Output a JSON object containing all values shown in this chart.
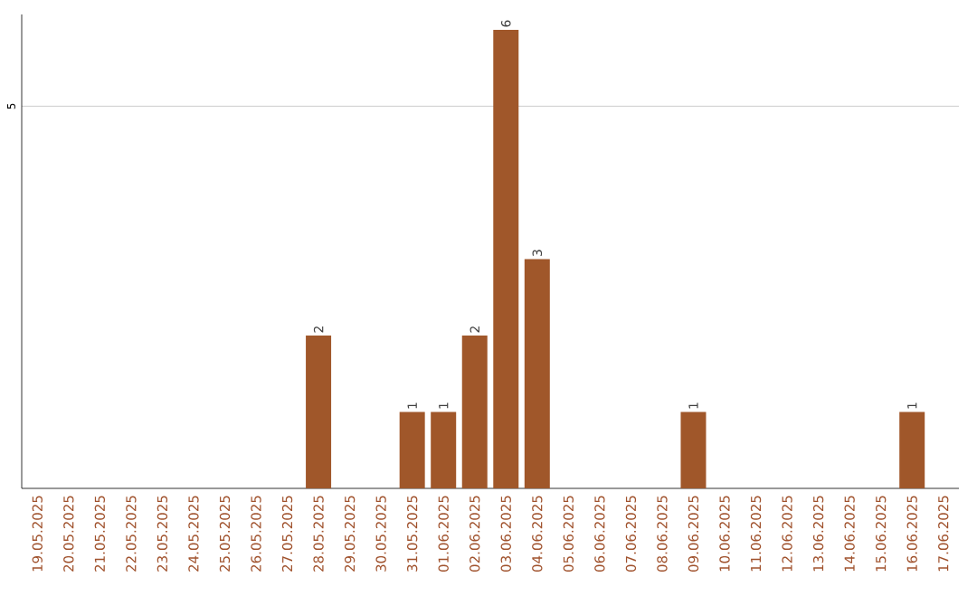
{
  "chart_data": {
    "type": "bar",
    "categories": [
      "19.05.2025",
      "20.05.2025",
      "21.05.2025",
      "22.05.2025",
      "23.05.2025",
      "24.05.2025",
      "25.05.2025",
      "26.05.2025",
      "27.05.2025",
      "28.05.2025",
      "29.05.2025",
      "30.05.2025",
      "31.05.2025",
      "01.06.2025",
      "02.06.2025",
      "03.06.2025",
      "04.06.2025",
      "05.06.2025",
      "06.06.2025",
      "07.06.2025",
      "08.06.2025",
      "09.06.2025",
      "10.06.2025",
      "11.06.2025",
      "12.06.2025",
      "13.06.2025",
      "14.06.2025",
      "15.06.2025",
      "16.06.2025",
      "17.06.2025"
    ],
    "values": [
      0,
      0,
      0,
      0,
      0,
      0,
      0,
      0,
      0,
      2,
      0,
      0,
      1,
      1,
      2,
      6,
      3,
      0,
      0,
      0,
      0,
      1,
      0,
      0,
      0,
      0,
      0,
      0,
      1,
      0
    ],
    "value_labels": [
      null,
      null,
      null,
      null,
      null,
      null,
      null,
      null,
      null,
      "2",
      null,
      null,
      "1",
      "1",
      "2",
      "6",
      "3",
      null,
      null,
      null,
      null,
      "1",
      null,
      null,
      null,
      null,
      null,
      null,
      "1",
      null
    ],
    "color": "#a0572a",
    "ylim": [
      0,
      6.2
    ],
    "yticks": [
      5
    ],
    "grid": "y"
  }
}
